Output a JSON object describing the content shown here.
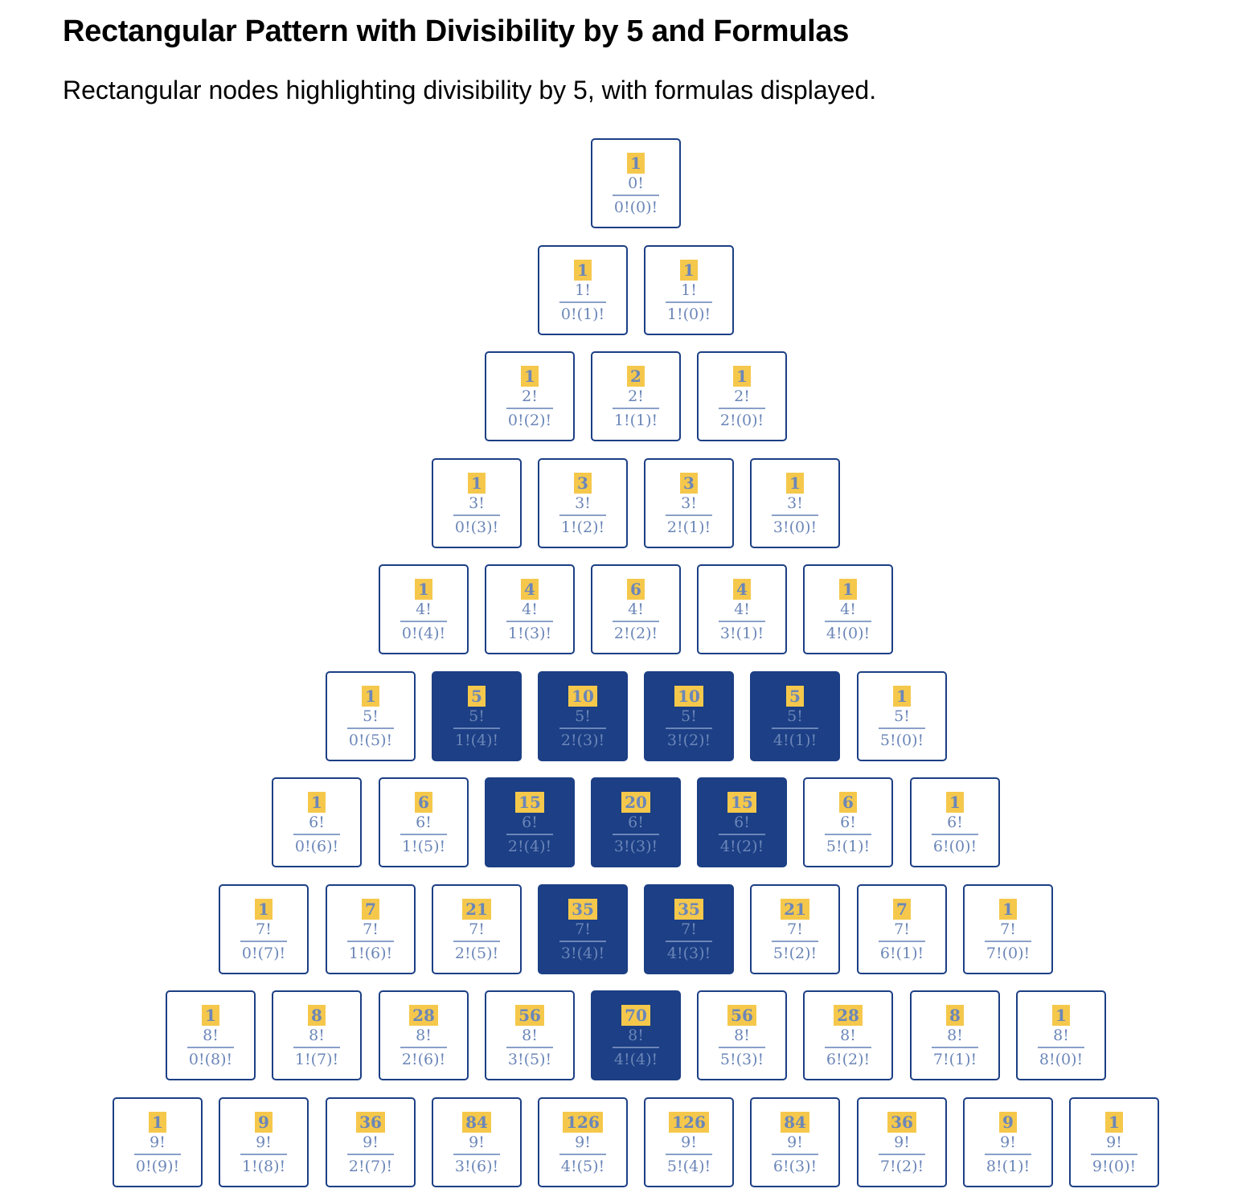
{
  "title": "Rectangular Pattern with Divisibility by 5 and Formulas",
  "subtitle": "Rectangular nodes highlighting divisibility by 5, with formulas displayed.",
  "colors": {
    "border": "#1c3f85",
    "highlight_fill": "#1c3f85",
    "value_badge": "#f5c84c",
    "text": "#6b86b8"
  },
  "rows": [
    [
      {
        "v": "1",
        "num": "0!",
        "den": "0!(0)!",
        "div5": false
      }
    ],
    [
      {
        "v": "1",
        "num": "1!",
        "den": "0!(1)!",
        "div5": false
      },
      {
        "v": "1",
        "num": "1!",
        "den": "1!(0)!",
        "div5": false
      }
    ],
    [
      {
        "v": "1",
        "num": "2!",
        "den": "0!(2)!",
        "div5": false
      },
      {
        "v": "2",
        "num": "2!",
        "den": "1!(1)!",
        "div5": false
      },
      {
        "v": "1",
        "num": "2!",
        "den": "2!(0)!",
        "div5": false
      }
    ],
    [
      {
        "v": "1",
        "num": "3!",
        "den": "0!(3)!",
        "div5": false
      },
      {
        "v": "3",
        "num": "3!",
        "den": "1!(2)!",
        "div5": false
      },
      {
        "v": "3",
        "num": "3!",
        "den": "2!(1)!",
        "div5": false
      },
      {
        "v": "1",
        "num": "3!",
        "den": "3!(0)!",
        "div5": false
      }
    ],
    [
      {
        "v": "1",
        "num": "4!",
        "den": "0!(4)!",
        "div5": false
      },
      {
        "v": "4",
        "num": "4!",
        "den": "1!(3)!",
        "div5": false
      },
      {
        "v": "6",
        "num": "4!",
        "den": "2!(2)!",
        "div5": false
      },
      {
        "v": "4",
        "num": "4!",
        "den": "3!(1)!",
        "div5": false
      },
      {
        "v": "1",
        "num": "4!",
        "den": "4!(0)!",
        "div5": false
      }
    ],
    [
      {
        "v": "1",
        "num": "5!",
        "den": "0!(5)!",
        "div5": false
      },
      {
        "v": "5",
        "num": "5!",
        "den": "1!(4)!",
        "div5": true
      },
      {
        "v": "10",
        "num": "5!",
        "den": "2!(3)!",
        "div5": true
      },
      {
        "v": "10",
        "num": "5!",
        "den": "3!(2)!",
        "div5": true
      },
      {
        "v": "5",
        "num": "5!",
        "den": "4!(1)!",
        "div5": true
      },
      {
        "v": "1",
        "num": "5!",
        "den": "5!(0)!",
        "div5": false
      }
    ],
    [
      {
        "v": "1",
        "num": "6!",
        "den": "0!(6)!",
        "div5": false
      },
      {
        "v": "6",
        "num": "6!",
        "den": "1!(5)!",
        "div5": false
      },
      {
        "v": "15",
        "num": "6!",
        "den": "2!(4)!",
        "div5": true
      },
      {
        "v": "20",
        "num": "6!",
        "den": "3!(3)!",
        "div5": true
      },
      {
        "v": "15",
        "num": "6!",
        "den": "4!(2)!",
        "div5": true
      },
      {
        "v": "6",
        "num": "6!",
        "den": "5!(1)!",
        "div5": false
      },
      {
        "v": "1",
        "num": "6!",
        "den": "6!(0)!",
        "div5": false
      }
    ],
    [
      {
        "v": "1",
        "num": "7!",
        "den": "0!(7)!",
        "div5": false
      },
      {
        "v": "7",
        "num": "7!",
        "den": "1!(6)!",
        "div5": false
      },
      {
        "v": "21",
        "num": "7!",
        "den": "2!(5)!",
        "div5": false
      },
      {
        "v": "35",
        "num": "7!",
        "den": "3!(4)!",
        "div5": true
      },
      {
        "v": "35",
        "num": "7!",
        "den": "4!(3)!",
        "div5": true
      },
      {
        "v": "21",
        "num": "7!",
        "den": "5!(2)!",
        "div5": false
      },
      {
        "v": "7",
        "num": "7!",
        "den": "6!(1)!",
        "div5": false
      },
      {
        "v": "1",
        "num": "7!",
        "den": "7!(0)!",
        "div5": false
      }
    ],
    [
      {
        "v": "1",
        "num": "8!",
        "den": "0!(8)!",
        "div5": false
      },
      {
        "v": "8",
        "num": "8!",
        "den": "1!(7)!",
        "div5": false
      },
      {
        "v": "28",
        "num": "8!",
        "den": "2!(6)!",
        "div5": false
      },
      {
        "v": "56",
        "num": "8!",
        "den": "3!(5)!",
        "div5": false
      },
      {
        "v": "70",
        "num": "8!",
        "den": "4!(4)!",
        "div5": true
      },
      {
        "v": "56",
        "num": "8!",
        "den": "5!(3)!",
        "div5": false
      },
      {
        "v": "28",
        "num": "8!",
        "den": "6!(2)!",
        "div5": false
      },
      {
        "v": "8",
        "num": "8!",
        "den": "7!(1)!",
        "div5": false
      },
      {
        "v": "1",
        "num": "8!",
        "den": "8!(0)!",
        "div5": false
      }
    ],
    [
      {
        "v": "1",
        "num": "9!",
        "den": "0!(9)!",
        "div5": false
      },
      {
        "v": "9",
        "num": "9!",
        "den": "1!(8)!",
        "div5": false
      },
      {
        "v": "36",
        "num": "9!",
        "den": "2!(7)!",
        "div5": false
      },
      {
        "v": "84",
        "num": "9!",
        "den": "3!(6)!",
        "div5": false
      },
      {
        "v": "126",
        "num": "9!",
        "den": "4!(5)!",
        "div5": false
      },
      {
        "v": "126",
        "num": "9!",
        "den": "5!(4)!",
        "div5": false
      },
      {
        "v": "84",
        "num": "9!",
        "den": "6!(3)!",
        "div5": false
      },
      {
        "v": "36",
        "num": "9!",
        "den": "7!(2)!",
        "div5": false
      },
      {
        "v": "9",
        "num": "9!",
        "den": "8!(1)!",
        "div5": false
      },
      {
        "v": "1",
        "num": "9!",
        "den": "9!(0)!",
        "div5": false
      }
    ]
  ]
}
